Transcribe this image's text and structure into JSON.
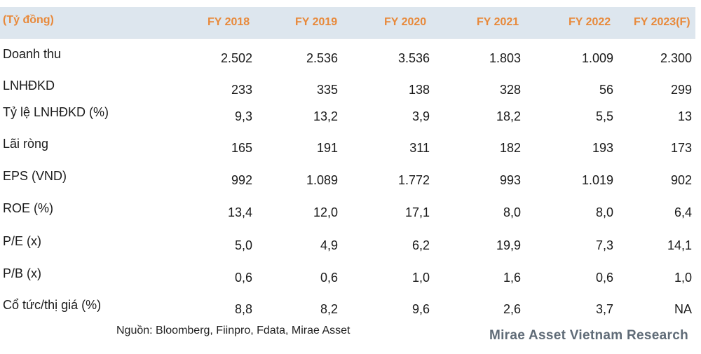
{
  "header": {
    "unit": "(Tỷ đồng)",
    "years": [
      "FY 2018",
      "FY 2019",
      "FY 2020",
      "FY 2021",
      "FY 2022",
      "FY 2023(F)"
    ]
  },
  "rows": [
    {
      "label": "Doanh thu",
      "values": [
        "2.502",
        "2.536",
        "3.536",
        "1.803",
        "1.009",
        "2.300"
      ]
    },
    {
      "label": "LNHĐKD",
      "values": [
        "233",
        "335",
        "138",
        "328",
        "56",
        "299"
      ]
    },
    {
      "label": "Tỷ lệ LNHĐKD (%)",
      "values": [
        "9,3",
        "13,2",
        "3,9",
        "18,2",
        "5,5",
        "13"
      ]
    },
    {
      "label": "Lãi ròng",
      "values": [
        "165",
        "191",
        "311",
        "182",
        "193",
        "173"
      ]
    },
    {
      "label": "EPS (VND)",
      "values": [
        "992",
        "1.089",
        "1.772",
        "993",
        "1.019",
        "902"
      ]
    },
    {
      "label": "ROE (%)",
      "values": [
        "13,4",
        "12,0",
        "17,1",
        "8,0",
        "8,0",
        "6,4"
      ]
    },
    {
      "label": "P/E (x)",
      "values": [
        "5,0",
        "4,9",
        "6,2",
        "19,9",
        "7,3",
        "14,1"
      ]
    },
    {
      "label": "P/B (x)",
      "values": [
        "0,6",
        "0,6",
        "1,0",
        "1,6",
        "0,6",
        "1,0"
      ]
    },
    {
      "label": "Cổ tức/thị giá (%)",
      "values": [
        "8,8",
        "8,2",
        "9,6",
        "2,6",
        "3,7",
        "NA"
      ]
    }
  ],
  "footer": {
    "source": "Nguồn: Bloomberg, Fiinpro, Fdata, Mirae Asset",
    "brand": "Mirae Asset Vietnam Research"
  },
  "colors": {
    "header_text": "#e8893a",
    "header_bg": "#dde6ee",
    "brand": "#5f6b77"
  }
}
